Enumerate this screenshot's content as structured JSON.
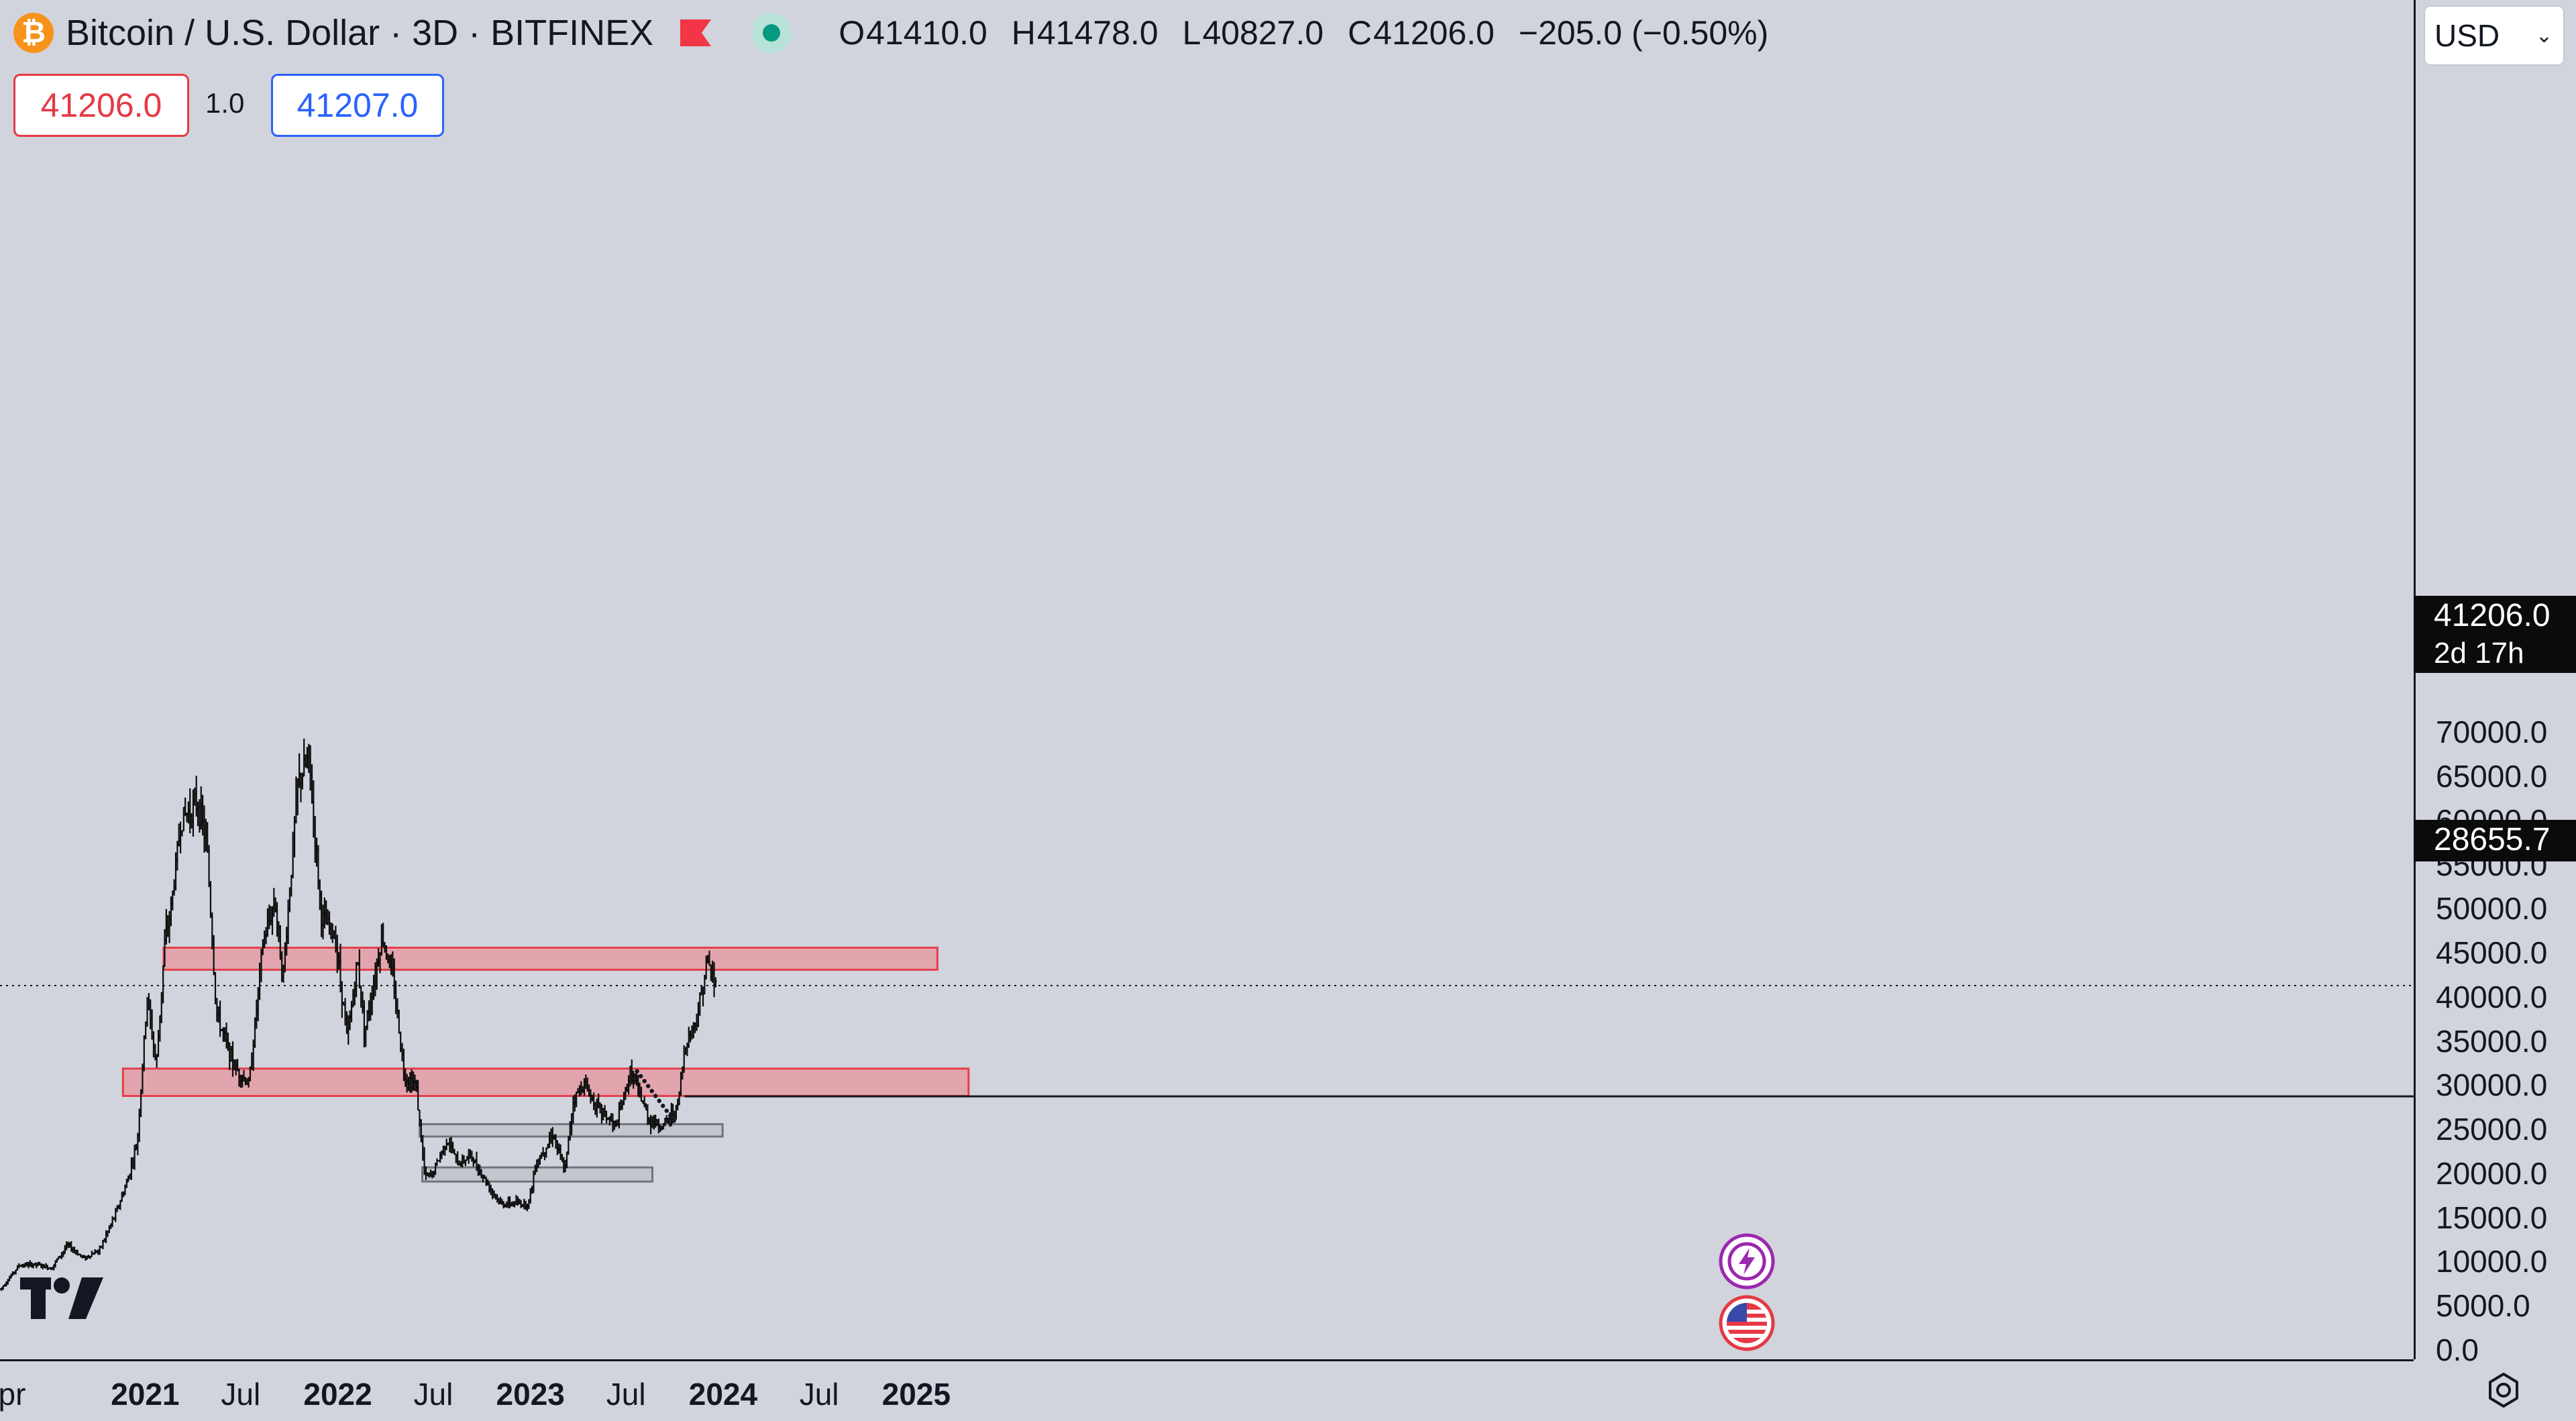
{
  "header": {
    "symbol_title": "Bitcoin / U.S. Dollar · 3D · BITFINEX",
    "open_label": "O",
    "open": "41410.0",
    "high_label": "H",
    "high": "41478.0",
    "low_label": "L",
    "low": "40827.0",
    "close_label": "C",
    "close": "41206.0",
    "change": "−205.0 (−0.50%)",
    "sell_price": "41206.0",
    "spread": "1.0",
    "buy_price": "41207.0",
    "icons": [
      "bitcoin-icon",
      "flag-icon",
      "live-status-icon"
    ]
  },
  "axis": {
    "currency": "USD",
    "current_price": "41206.0",
    "countdown": "2d 17h",
    "line_price": "28655.7"
  },
  "colors": {
    "background": "#d1d4dc",
    "resistance_zone": "#e5a3ab",
    "resistance_border": "#e53945",
    "support_zone": "#c3c6cd",
    "support_border": "#6b6f78",
    "candles": "#0b0b0b"
  },
  "chart_data": {
    "type": "bar",
    "title": "Bitcoin / U.S. Dollar · 3D · BITFINEX",
    "y_ticks": [
      "70000.0",
      "65000.0",
      "60000.0",
      "55000.0",
      "50000.0",
      "45000.0",
      "40000.0",
      "35000.0",
      "30000.0",
      "25000.0",
      "20000.0",
      "15000.0",
      "10000.0",
      "5000.0",
      "0.0"
    ],
    "x_ticks": [
      "pr",
      "2021",
      "Jul",
      "2022",
      "Jul",
      "2023",
      "Jul",
      "2024",
      "Jul",
      "2025"
    ],
    "x_ticks_bold": [
      "2021",
      "2022",
      "2023",
      "2024",
      "2025"
    ],
    "ylim": [
      0,
      72000
    ],
    "xlim": [
      "2020-04-01",
      "2025-04-15"
    ],
    "grid": false,
    "series": [
      {
        "values": [
          [
            "2020-04-05",
            6800
          ],
          [
            "2020-05-10",
            9500
          ],
          [
            "2020-06-10",
            9600
          ],
          [
            "2020-07-10",
            9200
          ],
          [
            "2020-08-10",
            11800
          ],
          [
            "2020-09-10",
            10300
          ],
          [
            "2020-10-10",
            11300
          ],
          [
            "2020-11-10",
            15500
          ],
          [
            "2020-12-01",
            19000
          ],
          [
            "2020-12-20",
            23500
          ],
          [
            "2021-01-08",
            40000
          ],
          [
            "2021-01-25",
            32000
          ],
          [
            "2021-02-10",
            46000
          ],
          [
            "2021-02-22",
            50000
          ],
          [
            "2021-03-13",
            60000
          ],
          [
            "2021-04-14",
            62000
          ],
          [
            "2021-05-01",
            57000
          ],
          [
            "2021-05-19",
            38000
          ],
          [
            "2021-06-22",
            32000
          ],
          [
            "2021-07-20",
            30000
          ],
          [
            "2021-08-15",
            46000
          ],
          [
            "2021-09-07",
            51000
          ],
          [
            "2021-09-22",
            42000
          ],
          [
            "2021-10-20",
            64000
          ],
          [
            "2021-11-10",
            67000
          ],
          [
            "2021-12-04",
            49000
          ],
          [
            "2021-12-31",
            46500
          ],
          [
            "2022-01-22",
            35000
          ],
          [
            "2022-02-10",
            44000
          ],
          [
            "2022-02-24",
            36000
          ],
          [
            "2022-03-29",
            47000
          ],
          [
            "2022-04-20",
            41500
          ],
          [
            "2022-05-10",
            31000
          ],
          [
            "2022-06-01",
            30000
          ],
          [
            "2022-06-18",
            19500
          ],
          [
            "2022-07-01",
            19700
          ],
          [
            "2022-07-30",
            23800
          ],
          [
            "2022-08-20",
            21000
          ],
          [
            "2022-09-12",
            22000
          ],
          [
            "2022-10-10",
            19200
          ],
          [
            "2022-11-08",
            16500
          ],
          [
            "2022-11-25",
            16500
          ],
          [
            "2022-12-31",
            16500
          ],
          [
            "2023-01-14",
            21000
          ],
          [
            "2023-02-16",
            24500
          ],
          [
            "2023-03-10",
            20000
          ],
          [
            "2023-03-25",
            28000
          ],
          [
            "2023-04-14",
            30200
          ],
          [
            "2023-05-10",
            27500
          ],
          [
            "2023-06-15",
            25200
          ],
          [
            "2023-07-13",
            31500
          ],
          [
            "2023-08-17",
            26000
          ],
          [
            "2023-09-11",
            25200
          ],
          [
            "2023-10-10",
            27500
          ],
          [
            "2023-10-24",
            34500
          ],
          [
            "2023-11-15",
            37500
          ],
          [
            "2023-12-05",
            44000
          ],
          [
            "2023-12-20",
            41206
          ]
        ]
      }
    ],
    "zones": [
      {
        "kind": "resistance",
        "from": "2021-02-05",
        "to": "2025-02-10",
        "low": 43000,
        "high": 45500
      },
      {
        "kind": "resistance",
        "from": "2020-11-20",
        "to": "2025-04-10",
        "low": 28700,
        "high": 31800
      },
      {
        "kind": "support",
        "from": "2022-06-05",
        "to": "2023-12-31",
        "low": 24100,
        "high": 25500
      },
      {
        "kind": "support",
        "from": "2022-06-10",
        "to": "2023-08-20",
        "low": 19000,
        "high": 20600
      }
    ],
    "horizontal_lines": [
      {
        "price": 28655.7,
        "from": "2023-10-20",
        "style": "solid"
      },
      {
        "price": 41206.0,
        "style": "dotted"
      }
    ]
  }
}
